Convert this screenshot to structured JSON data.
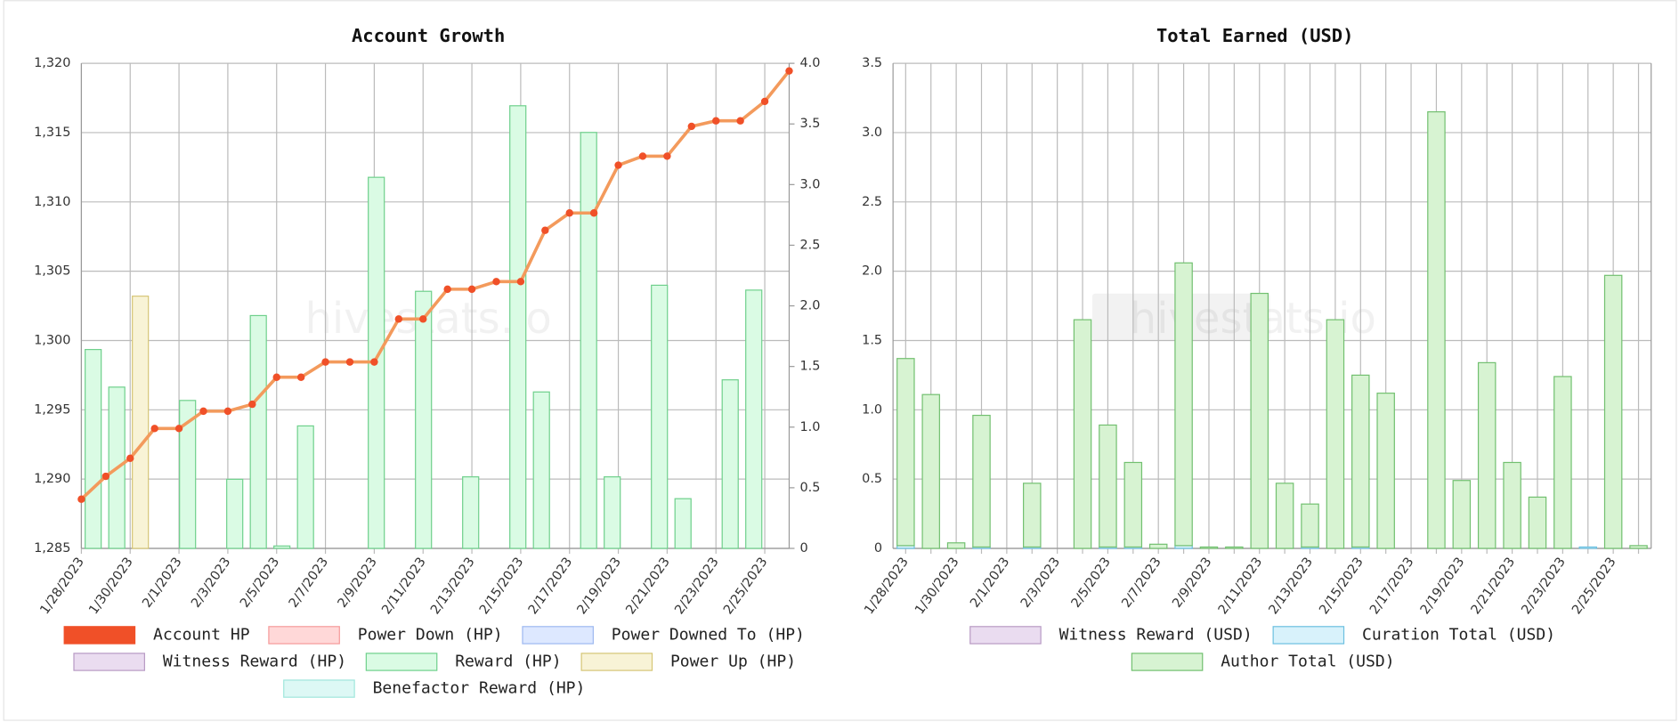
{
  "watermark": "hivestats.io",
  "chart_data": [
    {
      "type": "combo",
      "title": "Account Growth",
      "categories": [
        "1/28/2023",
        null,
        "1/30/2023",
        null,
        "2/1/2023",
        null,
        "2/3/2023",
        null,
        "2/5/2023",
        null,
        "2/7/2023",
        null,
        "2/9/2023",
        null,
        "2/11/2023",
        null,
        "2/13/2023",
        null,
        "2/15/2023",
        null,
        "2/17/2023",
        null,
        "2/19/2023",
        null,
        "2/21/2023",
        null,
        "2/23/2023",
        null,
        "2/25/2023",
        null
      ],
      "ylim": [
        1285,
        1320
      ],
      "yticks": [
        {
          "value": 1285,
          "label": "1,285"
        },
        {
          "value": 1290,
          "label": "1,290"
        },
        {
          "value": 1295,
          "label": "1,295"
        },
        {
          "value": 1300,
          "label": "1,300"
        },
        {
          "value": 1305,
          "label": "1,305"
        },
        {
          "value": 1310,
          "label": "1,310"
        },
        {
          "value": 1315,
          "label": "1,315"
        },
        {
          "value": 1320,
          "label": "1,320"
        }
      ],
      "y2lim": [
        0,
        4
      ],
      "y2ticks": [
        0,
        0.5,
        {
          "value": 1,
          "label": "1.0"
        },
        1.5,
        {
          "value": 2,
          "label": "2.0"
        },
        2.5,
        {
          "value": 3,
          "label": "3.0"
        },
        3.5,
        {
          "value": 4,
          "label": "4.0"
        }
      ],
      "grid": true,
      "series": [
        {
          "name": "Account HP",
          "color": "#f05028",
          "line_color": "#f39a5c",
          "axis": "y",
          "values": [
            1288.55,
            1290.2,
            1291.5,
            1293.65,
            1293.65,
            1294.9,
            1294.9,
            1295.4,
            1297.35,
            1297.35,
            1298.45,
            1298.45,
            1298.45,
            1301.55,
            1301.55,
            1303.7,
            1303.7,
            1304.25,
            1304.25,
            1307.95,
            1309.2,
            1309.2,
            1312.65,
            1313.3,
            1313.3,
            1315.45,
            1315.85,
            1315.85,
            1317.25,
            1319.45
          ]
        },
        {
          "name": "Power Down (HP)",
          "color": "#ffd8d8",
          "border": "#f59a9a",
          "axis": "y2",
          "values": [
            0,
            0,
            0,
            0,
            0,
            0,
            0,
            0,
            0,
            0,
            0,
            0,
            0,
            0,
            0,
            0,
            0,
            0,
            0,
            0,
            0,
            0,
            0,
            0,
            0,
            0,
            0,
            0,
            0,
            0
          ]
        },
        {
          "name": "Power Downed To (HP)",
          "color": "#dde8ff",
          "border": "#9db8f0",
          "axis": "y2",
          "values": [
            0,
            0,
            0,
            0,
            0,
            0,
            0,
            0,
            0,
            0,
            0,
            0,
            0,
            0,
            0,
            0,
            0,
            0,
            0,
            0,
            0,
            0,
            0,
            0,
            0,
            0,
            0,
            0,
            0,
            0
          ]
        },
        {
          "name": "Witness Reward (HP)",
          "color": "#eadcf0",
          "border": "#b89ac4",
          "axis": "y2",
          "values": [
            0,
            0,
            0,
            0,
            0,
            0,
            0,
            0,
            0,
            0,
            0,
            0,
            0,
            0,
            0,
            0,
            0,
            0,
            0,
            0,
            0,
            0,
            0,
            0,
            0,
            0,
            0,
            0,
            0,
            0
          ]
        },
        {
          "name": "Reward (HP)",
          "color": "#dafbe4",
          "border": "#6fd08c",
          "axis": "y2",
          "values": [
            1.64,
            1.33,
            0,
            0,
            1.22,
            0,
            0.57,
            1.92,
            0.02,
            1.01,
            0,
            0,
            3.06,
            0,
            2.12,
            0,
            0.59,
            0,
            3.65,
            1.29,
            0,
            3.43,
            0.59,
            0,
            2.17,
            0.41,
            0,
            1.39,
            2.13,
            0
          ]
        },
        {
          "name": "Power Up (HP)",
          "color": "#f8f3d6",
          "border": "#d6c676",
          "axis": "y2",
          "values": [
            0,
            0,
            2.08,
            0,
            0,
            0,
            0,
            0,
            0,
            0,
            0,
            0,
            0,
            0,
            0,
            0,
            0,
            0,
            0,
            0,
            0,
            0,
            0,
            0,
            0,
            0,
            0,
            0,
            0,
            0
          ]
        },
        {
          "name": "Benefactor Reward (HP)",
          "color": "#ddf8f5",
          "border": "#9fe6dc",
          "axis": "y2",
          "values": [
            0,
            0,
            0,
            0,
            0,
            0,
            0,
            0,
            0,
            0,
            0,
            0,
            0,
            0,
            0,
            0,
            0,
            0,
            0,
            0,
            0,
            0,
            0,
            0,
            0,
            0,
            0,
            0,
            0,
            0
          ]
        }
      ]
    },
    {
      "type": "bar",
      "title": "Total Earned (USD)",
      "categories": [
        "1/28/2023",
        null,
        "1/30/2023",
        null,
        "2/1/2023",
        null,
        "2/3/2023",
        null,
        "2/5/2023",
        null,
        "2/7/2023",
        null,
        "2/9/2023",
        null,
        "2/11/2023",
        null,
        "2/13/2023",
        null,
        "2/15/2023",
        null,
        "2/17/2023",
        null,
        "2/19/2023",
        null,
        "2/21/2023",
        null,
        "2/23/2023",
        null,
        "2/25/2023",
        null
      ],
      "ylim": [
        0,
        3.5
      ],
      "yticks": [
        0,
        0.5,
        {
          "value": 1,
          "label": "1.0"
        },
        1.5,
        {
          "value": 2,
          "label": "2.0"
        },
        2.5,
        {
          "value": 3,
          "label": "3.0"
        },
        3.5
      ],
      "grid": true,
      "series": [
        {
          "name": "Witness Reward (USD)",
          "color": "#eadcf0",
          "border": "#b89ac4",
          "values": [
            0,
            0,
            0,
            0,
            0,
            0,
            0,
            0,
            0,
            0,
            0,
            0,
            0,
            0,
            0,
            0,
            0,
            0,
            0,
            0,
            0,
            0,
            0,
            0,
            0,
            0,
            0,
            0,
            0,
            0
          ]
        },
        {
          "name": "Curation Total (USD)",
          "color": "#d8f2fb",
          "border": "#6cc0e0",
          "values": [
            0.02,
            0,
            0,
            0.01,
            0,
            0.01,
            0,
            0,
            0.01,
            0.01,
            0,
            0.02,
            0,
            0,
            0,
            0,
            0.01,
            0,
            0.01,
            0,
            0,
            0,
            0,
            0,
            0,
            0,
            0,
            0.01,
            0,
            0
          ]
        },
        {
          "name": "Author Total (USD)",
          "color": "#d7f3d2",
          "border": "#72c070",
          "values": [
            1.35,
            1.11,
            0.04,
            0.95,
            0,
            0.46,
            0,
            1.65,
            0.88,
            0.61,
            0.03,
            2.04,
            0.01,
            0.01,
            1.84,
            0.47,
            0.31,
            1.65,
            1.24,
            1.12,
            0,
            3.15,
            0.49,
            1.34,
            0.62,
            0.37,
            1.24,
            0,
            1.97,
            0.02
          ]
        }
      ]
    }
  ]
}
